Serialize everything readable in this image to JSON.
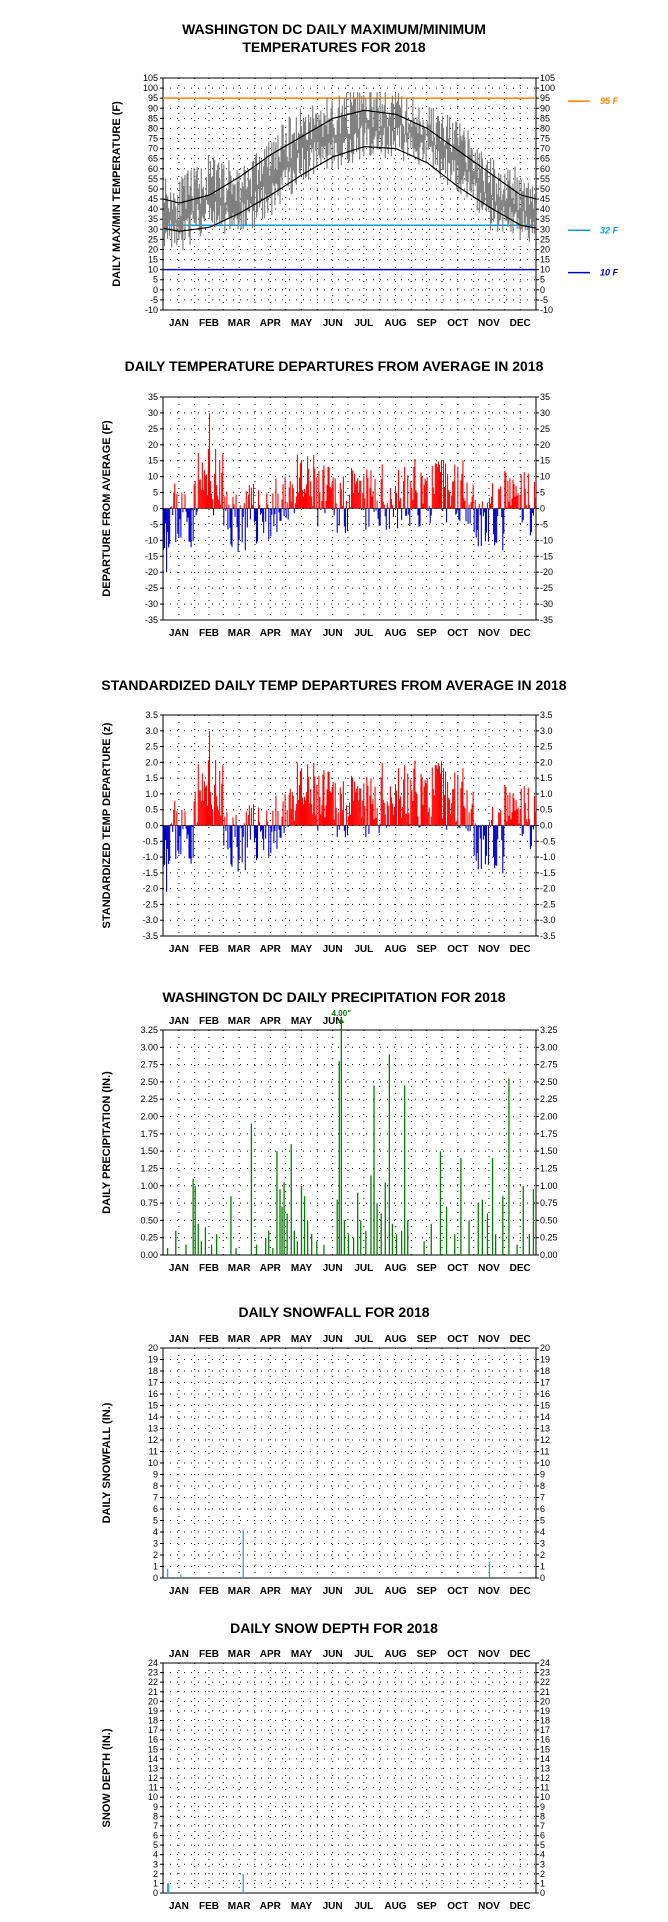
{
  "months": [
    "JAN",
    "FEB",
    "MAR",
    "APR",
    "MAY",
    "JUN",
    "JUL",
    "AUG",
    "SEP",
    "OCT",
    "NOV",
    "DEC"
  ],
  "colors": {
    "observed_band": "#808080",
    "normal_line": "#000000",
    "warm": "#ff0000",
    "cold": "#0000cc",
    "precip": "#008000",
    "snow": "#3399ff",
    "ref95": "#ff8000",
    "ref32": "#00a0e0",
    "ref10": "#0000cc"
  },
  "chart_data": [
    {
      "id": "maxmin",
      "type": "area",
      "title_lines": [
        "WASHINGTON DC DAILY MAXIMUM/MINIMUM",
        "TEMPERATURES FOR 2018"
      ],
      "ylabel": "DAILY MAX/MIN TEMPERATURE (F)",
      "ylim": [
        -10,
        105
      ],
      "yticks": [
        -10,
        -5,
        0,
        5,
        10,
        15,
        20,
        25,
        30,
        35,
        40,
        45,
        50,
        55,
        60,
        65,
        70,
        75,
        80,
        85,
        90,
        95,
        100,
        105
      ],
      "month_labels": "bottom",
      "grid": "dotted",
      "reference_lines": [
        {
          "value": 95,
          "label": "95 F",
          "color": "#ff8000"
        },
        {
          "value": 32,
          "label": "32 F",
          "color": "#00a0e0"
        },
        {
          "value": 10,
          "label": "10 F",
          "color": "#0000cc"
        }
      ],
      "normal_high_by_month": [
        43,
        47,
        56,
        67,
        76,
        85,
        89,
        87,
        80,
        69,
        58,
        47
      ],
      "normal_low_by_month": [
        29,
        31,
        38,
        47,
        57,
        66,
        71,
        70,
        63,
        51,
        41,
        32
      ],
      "observed_high_by_month": [
        45,
        56,
        52,
        65,
        82,
        86,
        90,
        88,
        83,
        74,
        55,
        50
      ],
      "observed_low_by_month": [
        27,
        38,
        35,
        45,
        62,
        68,
        74,
        74,
        68,
        57,
        38,
        33
      ],
      "observed_max": 98,
      "observed_min": 11
    },
    {
      "id": "departures",
      "type": "bar",
      "title_lines": [
        "DAILY TEMPERATURE DEPARTURES FROM AVERAGE IN 2018"
      ],
      "ylabel": "DEPARTURE FROM AVERAGE (F)",
      "ylim": [
        -35,
        35
      ],
      "yticks": [
        -35,
        -30,
        -25,
        -20,
        -15,
        -10,
        -5,
        0,
        5,
        10,
        15,
        20,
        25,
        30,
        35
      ],
      "month_labels": "bottom",
      "grid": "dotted",
      "monthly_mean_departure": [
        -2,
        8,
        -3,
        -1,
        6,
        3,
        2,
        3,
        5,
        6,
        -3,
        2
      ],
      "peak_warm": 30,
      "peak_cold": -20
    },
    {
      "id": "standardized",
      "type": "bar",
      "title_lines": [
        "STANDARDIZED DAILY TEMP DEPARTURES FROM AVERAGE IN 2018"
      ],
      "ylabel": "STANDARDIZED TEMP DEPARTURE (z)",
      "ylim": [
        -3.5,
        3.5
      ],
      "yticks": [
        -3.5,
        -3.0,
        -2.5,
        -2.0,
        -1.5,
        -1.0,
        -0.5,
        0.0,
        0.5,
        1.0,
        1.5,
        2.0,
        2.5,
        3.0,
        3.5
      ],
      "month_labels": "bottom",
      "grid": "dotted",
      "monthly_mean_departure": [
        -0.2,
        1.0,
        -0.4,
        -0.1,
        0.9,
        0.7,
        0.5,
        0.9,
        1.0,
        0.9,
        -0.5,
        0.3
      ],
      "peak_warm": 3.0,
      "peak_cold": -2.1
    },
    {
      "id": "precip",
      "type": "bar",
      "title_lines": [
        "WASHINGTON DC DAILY PRECIPITATION FOR 2018"
      ],
      "ylabel": "DAILY PRECIPITATION (IN.)",
      "ylim": [
        0,
        3.25
      ],
      "yticks": [
        0.0,
        0.25,
        0.5,
        0.75,
        1.0,
        1.25,
        1.5,
        1.75,
        2.0,
        2.25,
        2.5,
        2.75,
        3.0,
        3.25
      ],
      "month_labels": "bottom-partial",
      "grid": "dotted",
      "offscale_annotation": {
        "day": 174,
        "value": 4.0,
        "label": "4.00\""
      },
      "events": [
        {
          "day": 4,
          "value": 0.1
        },
        {
          "day": 12,
          "value": 0.35
        },
        {
          "day": 22,
          "value": 0.15
        },
        {
          "day": 29,
          "value": 1.1
        },
        {
          "day": 31,
          "value": 1.0
        },
        {
          "day": 34,
          "value": 0.45
        },
        {
          "day": 37,
          "value": 0.2
        },
        {
          "day": 41,
          "value": 0.4
        },
        {
          "day": 47,
          "value": 0.15
        },
        {
          "day": 52,
          "value": 0.3
        },
        {
          "day": 66,
          "value": 0.85
        },
        {
          "day": 71,
          "value": 0.1
        },
        {
          "day": 86,
          "value": 1.9
        },
        {
          "day": 91,
          "value": 0.15
        },
        {
          "day": 100,
          "value": 0.25
        },
        {
          "day": 103,
          "value": 0.35
        },
        {
          "day": 107,
          "value": 0.1
        },
        {
          "day": 111,
          "value": 1.5
        },
        {
          "day": 114,
          "value": 0.95
        },
        {
          "day": 116,
          "value": 0.7
        },
        {
          "day": 118,
          "value": 1.05
        },
        {
          "day": 121,
          "value": 0.6
        },
        {
          "day": 125,
          "value": 1.6
        },
        {
          "day": 128,
          "value": 0.35
        },
        {
          "day": 131,
          "value": 0.2
        },
        {
          "day": 135,
          "value": 1.0
        },
        {
          "day": 138,
          "value": 0.85
        },
        {
          "day": 141,
          "value": 0.5
        },
        {
          "day": 145,
          "value": 0.3
        },
        {
          "day": 150,
          "value": 0.2
        },
        {
          "day": 157,
          "value": 0.15
        },
        {
          "day": 170,
          "value": 0.8
        },
        {
          "day": 172,
          "value": 2.8
        },
        {
          "day": 174,
          "value": 4.0
        },
        {
          "day": 177,
          "value": 0.5
        },
        {
          "day": 181,
          "value": 0.3
        },
        {
          "day": 186,
          "value": 0.25
        },
        {
          "day": 190,
          "value": 0.9
        },
        {
          "day": 193,
          "value": 0.5
        },
        {
          "day": 198,
          "value": 0.35
        },
        {
          "day": 203,
          "value": 1.15
        },
        {
          "day": 206,
          "value": 2.45
        },
        {
          "day": 209,
          "value": 0.75
        },
        {
          "day": 213,
          "value": 0.6
        },
        {
          "day": 217,
          "value": 1.05
        },
        {
          "day": 221,
          "value": 2.9
        },
        {
          "day": 224,
          "value": 0.45
        },
        {
          "day": 228,
          "value": 0.3
        },
        {
          "day": 233,
          "value": 0.35
        },
        {
          "day": 236,
          "value": 2.45
        },
        {
          "day": 239,
          "value": 0.5
        },
        {
          "day": 255,
          "value": 0.2
        },
        {
          "day": 262,
          "value": 0.45
        },
        {
          "day": 271,
          "value": 1.5
        },
        {
          "day": 277,
          "value": 0.7
        },
        {
          "day": 285,
          "value": 0.3
        },
        {
          "day": 291,
          "value": 1.4
        },
        {
          "day": 299,
          "value": 0.5
        },
        {
          "day": 308,
          "value": 0.75
        },
        {
          "day": 312,
          "value": 0.8
        },
        {
          "day": 317,
          "value": 0.6
        },
        {
          "day": 322,
          "value": 1.4
        },
        {
          "day": 325,
          "value": 0.3
        },
        {
          "day": 332,
          "value": 0.85
        },
        {
          "day": 338,
          "value": 2.55
        },
        {
          "day": 346,
          "value": 0.15
        },
        {
          "day": 352,
          "value": 1.0
        },
        {
          "day": 358,
          "value": 0.3
        },
        {
          "day": 362,
          "value": 0.95
        }
      ]
    },
    {
      "id": "snowfall",
      "type": "bar",
      "title_lines": [
        "DAILY SNOWFALL FOR 2018"
      ],
      "ylabel": "DAILY SNOWFALL (IN.)",
      "ylim": [
        0,
        20
      ],
      "yticks": [
        0,
        1,
        2,
        3,
        4,
        5,
        6,
        7,
        8,
        9,
        10,
        11,
        12,
        13,
        14,
        15,
        16,
        17,
        18,
        19,
        20
      ],
      "month_labels": "both",
      "grid": "dotted",
      "events": [
        {
          "day": 4,
          "value": 0.8
        },
        {
          "day": 17,
          "value": 0.3
        },
        {
          "day": 30,
          "value": 0.1
        },
        {
          "day": 78,
          "value": 4.2
        },
        {
          "day": 80,
          "value": 0.1
        },
        {
          "day": 319,
          "value": 1.4
        }
      ]
    },
    {
      "id": "snowdepth",
      "type": "bar",
      "title_lines": [
        "DAILY SNOW DEPTH FOR 2018"
      ],
      "ylabel": "SNOW DEPTH (IN.)",
      "ylim": [
        0,
        24
      ],
      "yticks": [
        0,
        1,
        2,
        3,
        4,
        5,
        6,
        7,
        8,
        9,
        10,
        11,
        12,
        13,
        14,
        15,
        16,
        17,
        18,
        19,
        20,
        21,
        22,
        23,
        24
      ],
      "month_labels": "both",
      "grid": "dotted",
      "events": [
        {
          "day": 4,
          "value": 1
        },
        {
          "day": 5,
          "value": 1
        },
        {
          "day": 78,
          "value": 2
        }
      ]
    }
  ]
}
